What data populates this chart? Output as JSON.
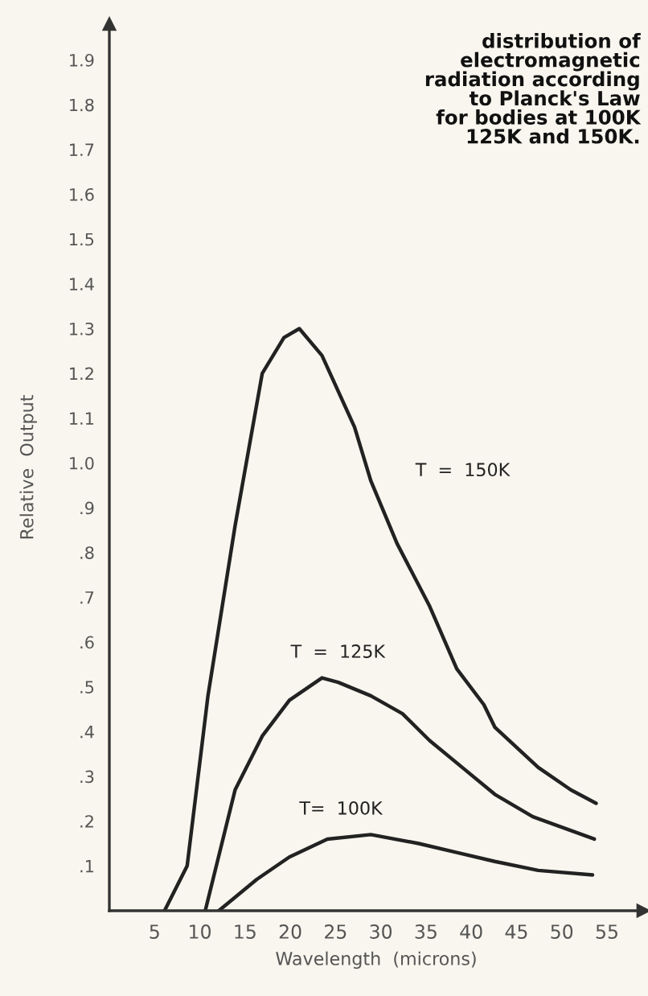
{
  "chart_data": {
    "type": "line",
    "title": "distribution of\nelectromagnetic\nradiation according\nto Planck's Law\nfor bodies at 100K\n125K and 150K.",
    "xlabel": "Wavelength  (microns)",
    "ylabel": "Relative  Output",
    "series": [
      {
        "name": "T  =  150K",
        "color": "#222222",
        "x": [
          6.1,
          8.6,
          10.9,
          13.9,
          16.9,
          19.3,
          21.0,
          23.5,
          27.1,
          28.9,
          31.8,
          35.4,
          38.4,
          41.4,
          42.6,
          47.4,
          51.0,
          53.8
        ],
        "values": [
          0,
          0.1,
          0.48,
          0.86,
          1.2,
          1.28,
          1.3,
          1.24,
          1.08,
          0.96,
          0.82,
          0.68,
          0.54,
          0.46,
          0.41,
          0.32,
          0.27,
          0.24
        ]
      },
      {
        "name": "T  =  125K",
        "color": "#222222",
        "x": [
          10.6,
          13.9,
          16.9,
          19.9,
          23.5,
          25.3,
          28.9,
          32.4,
          35.4,
          39.0,
          42.6,
          46.8,
          53.6
        ],
        "values": [
          0,
          0.27,
          0.39,
          0.47,
          0.52,
          0.51,
          0.48,
          0.44,
          0.38,
          0.32,
          0.26,
          0.21,
          0.16
        ]
      },
      {
        "name": "T=  100K",
        "color": "#222222",
        "x": [
          12.1,
          16.3,
          19.9,
          24.1,
          28.9,
          34.2,
          38.4,
          42.6,
          47.4,
          53.4
        ],
        "values": [
          0,
          0.07,
          0.12,
          0.16,
          0.17,
          0.15,
          0.13,
          0.11,
          0.09,
          0.08
        ]
      }
    ],
    "xlim": [
      0,
      59
    ],
    "ylim": [
      0,
      1.98
    ],
    "xticks": [
      5,
      10,
      15,
      20,
      25,
      30,
      35,
      40,
      45,
      50,
      55
    ],
    "yticks": [
      {
        "value": 0.1,
        "label": ".1"
      },
      {
        "value": 0.2,
        "label": ".2"
      },
      {
        "value": 0.3,
        "label": ".3"
      },
      {
        "value": 0.4,
        "label": ".4"
      },
      {
        "value": 0.5,
        "label": ".5"
      },
      {
        "value": 0.6,
        "label": ".6"
      },
      {
        "value": 0.7,
        "label": ".7"
      },
      {
        "value": 0.8,
        "label": ".8"
      },
      {
        "value": 0.9,
        "label": ".9"
      },
      {
        "value": 1.0,
        "label": "1.0"
      },
      1.1,
      1.2,
      1.3,
      1.4,
      1.5,
      1.6,
      1.7,
      1.8,
      1.9
    ],
    "grid": false,
    "marker": "none",
    "line_style": "solid"
  }
}
